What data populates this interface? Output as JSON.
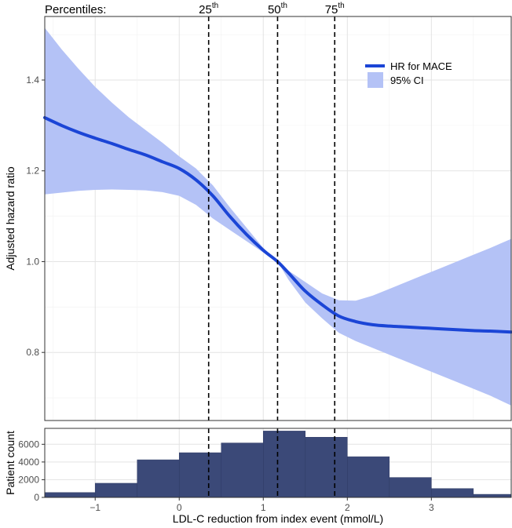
{
  "chart_data": [
    {
      "type": "line",
      "ylabel": "Adjusted hazard ratio",
      "xlim": [
        -1.6,
        3.95
      ],
      "ylim": [
        0.65,
        1.54
      ],
      "x_ticks": [
        -1,
        0,
        1,
        2,
        3
      ],
      "y_ticks": [
        0.8,
        1.0,
        1.2,
        1.4
      ],
      "y_tick_labels": [
        "0.8",
        "1.0",
        "1.2",
        "1.4"
      ],
      "grid": true,
      "legend_position": "top-right",
      "percentiles": {
        "title": "Percentiles:",
        "lines": [
          {
            "label": "25",
            "suffix": "th",
            "x": 0.35
          },
          {
            "label": "50",
            "suffix": "th",
            "x": 1.17
          },
          {
            "label": "75",
            "suffix": "th",
            "x": 1.85
          }
        ]
      },
      "series": [
        {
          "name": "HR for MACE",
          "color": "#1b45d6",
          "x": [
            -1.6,
            -1.4,
            -1.2,
            -1.0,
            -0.8,
            -0.6,
            -0.4,
            -0.2,
            0.0,
            0.2,
            0.4,
            0.6,
            0.8,
            1.0,
            1.17,
            1.3,
            1.5,
            1.7,
            1.9,
            2.1,
            2.3,
            2.5,
            2.7,
            2.9,
            3.1,
            3.3,
            3.5,
            3.7,
            3.95
          ],
          "y": [
            1.317,
            1.3,
            1.285,
            1.272,
            1.26,
            1.247,
            1.235,
            1.22,
            1.205,
            1.18,
            1.145,
            1.1,
            1.06,
            1.025,
            1.0,
            0.975,
            0.935,
            0.905,
            0.88,
            0.868,
            0.861,
            0.858,
            0.856,
            0.854,
            0.852,
            0.85,
            0.848,
            0.847,
            0.845
          ]
        },
        {
          "name": "95% CI",
          "type": "area",
          "color": "#b4c2f6",
          "x": [
            -1.6,
            -1.4,
            -1.2,
            -1.0,
            -0.8,
            -0.6,
            -0.4,
            -0.2,
            0.0,
            0.2,
            0.4,
            0.6,
            0.8,
            1.0,
            1.17,
            1.3,
            1.5,
            1.7,
            1.9,
            2.1,
            2.3,
            2.5,
            2.7,
            2.9,
            3.1,
            3.3,
            3.5,
            3.7,
            3.95
          ],
          "lower": [
            1.148,
            1.152,
            1.156,
            1.158,
            1.159,
            1.158,
            1.157,
            1.153,
            1.145,
            1.125,
            1.095,
            1.07,
            1.045,
            1.02,
            1.0,
            0.96,
            0.91,
            0.875,
            0.843,
            0.825,
            0.81,
            0.795,
            0.78,
            0.765,
            0.75,
            0.735,
            0.72,
            0.705,
            0.683
          ],
          "upper": [
            1.515,
            1.468,
            1.425,
            1.385,
            1.35,
            1.318,
            1.29,
            1.262,
            1.232,
            1.205,
            1.168,
            1.12,
            1.075,
            1.03,
            1.0,
            0.98,
            0.955,
            0.93,
            0.915,
            0.914,
            0.925,
            0.94,
            0.955,
            0.97,
            0.985,
            1.0,
            1.015,
            1.03,
            1.05
          ]
        }
      ]
    },
    {
      "type": "bar",
      "ylabel": "Patient count",
      "xlabel": "LDL-C reduction from index event (mmol/L)",
      "xlim": [
        -1.6,
        3.95
      ],
      "ylim": [
        0,
        7800
      ],
      "x_ticks": [
        -1,
        0,
        1,
        2,
        3
      ],
      "y_ticks": [
        0,
        2000,
        4000,
        6000
      ],
      "bar_color": "#3b4978",
      "bins": [
        {
          "x0": -1.6,
          "x1": -1.0,
          "count": 550
        },
        {
          "x0": -1.0,
          "x1": -0.5,
          "count": 1600
        },
        {
          "x0": -0.5,
          "x1": 0.0,
          "count": 4250
        },
        {
          "x0": 0.0,
          "x1": 0.5,
          "count": 5050
        },
        {
          "x0": 0.5,
          "x1": 1.0,
          "count": 6150
        },
        {
          "x0": 1.0,
          "x1": 1.5,
          "count": 7500
        },
        {
          "x0": 1.5,
          "x1": 2.0,
          "count": 6800
        },
        {
          "x0": 2.0,
          "x1": 2.5,
          "count": 4600
        },
        {
          "x0": 2.5,
          "x1": 3.0,
          "count": 2250
        },
        {
          "x0": 3.0,
          "x1": 3.5,
          "count": 1000
        },
        {
          "x0": 3.5,
          "x1": 3.95,
          "count": 350
        }
      ]
    }
  ]
}
